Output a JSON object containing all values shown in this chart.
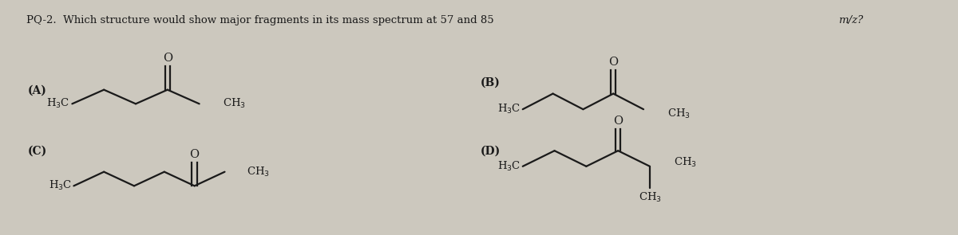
{
  "bg_color": "#ccc8be",
  "text_color": "#1a1a1a",
  "title_main": "PQ-2.  Which structure would show major fragments in its mass spectrum at 57 and 85 ",
  "title_italic": "m/z?",
  "label_A": "(A)",
  "label_B": "(B)",
  "label_C": "(C)",
  "label_D": "(D)",
  "seg": 0.4,
  "rise": 0.18
}
